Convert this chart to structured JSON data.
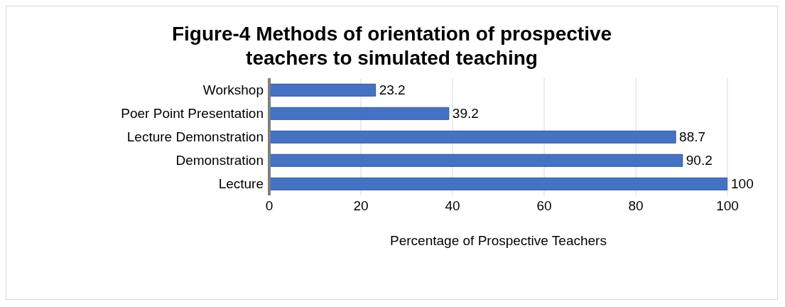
{
  "chart_data": {
    "type": "bar",
    "orientation": "horizontal",
    "title": "Figure-4 Methods of orientation of prospective teachers to simulated teaching",
    "xlabel": "Percentage of Prospective Teachers",
    "categories": [
      "Workshop",
      "Poer Point Presentation",
      "Lecture Demonstration",
      "Demonstration",
      "Lecture"
    ],
    "values": [
      23.2,
      39.2,
      88.7,
      90.2,
      100
    ],
    "color": "#4472c4",
    "xlim": [
      0,
      100
    ],
    "xticks": [
      0,
      20,
      40,
      60,
      80,
      100
    ],
    "grid": "x",
    "data_labels": true
  }
}
